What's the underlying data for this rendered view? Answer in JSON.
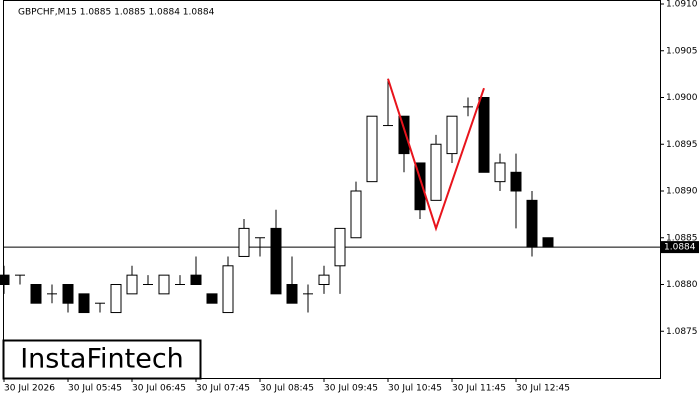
{
  "chart_data": {
    "type": "candlestick",
    "header": "GBPCHF,M15  1.0885 1.0885 1.0884 1.0884",
    "logo": "InstaFintech",
    "categories": [
      "30 Jul 2026",
      null,
      null,
      null,
      "30 Jul 05:45",
      null,
      null,
      null,
      "30 Jul 06:45",
      null,
      null,
      null,
      "30 Jul 07:45",
      null,
      null,
      null,
      "30 Jul 08:45",
      null,
      null,
      null,
      "30 Jul 09:45",
      null,
      null,
      null,
      "30 Jul 10:45",
      null,
      null,
      null,
      "30 Jul 11:45",
      null,
      null,
      null,
      "30 Jul 12:45",
      null,
      null
    ],
    "open": [
      1.0881,
      1.0881,
      1.088,
      1.0879,
      1.088,
      1.0879,
      1.0878,
      1.0877,
      1.0879,
      1.088,
      1.0879,
      1.088,
      1.0881,
      1.0879,
      1.0877,
      1.0883,
      1.0885,
      1.0886,
      1.088,
      1.0879,
      1.088,
      1.0882,
      1.0885,
      1.0891,
      1.0897,
      1.0898,
      1.0893,
      1.0889,
      1.0894,
      1.0899,
      1.09,
      1.0891,
      1.0892,
      1.0889,
      1.0885
    ],
    "high": [
      1.0882,
      1.0881,
      1.088,
      1.088,
      1.088,
      1.0879,
      1.0878,
      1.088,
      1.0882,
      1.0881,
      1.0881,
      1.0881,
      1.0883,
      1.0879,
      1.0883,
      1.0887,
      1.0885,
      1.0888,
      1.0883,
      1.088,
      1.0882,
      1.0886,
      1.0891,
      1.0898,
      1.0902,
      1.0898,
      1.0893,
      1.0896,
      1.0898,
      1.09,
      1.09,
      1.0894,
      1.0894,
      1.089,
      1.0885
    ],
    "low": [
      1.0879,
      1.088,
      1.0878,
      1.0878,
      1.0877,
      1.0877,
      1.0877,
      1.0877,
      1.0879,
      1.088,
      1.0879,
      1.088,
      1.088,
      1.0878,
      1.0877,
      1.0883,
      1.0883,
      1.0879,
      1.0878,
      1.0877,
      1.0879,
      1.0879,
      1.0885,
      1.0891,
      1.0897,
      1.0892,
      1.0887,
      1.0889,
      1.0893,
      1.0898,
      1.0892,
      1.089,
      1.0886,
      1.0883,
      1.0884
    ],
    "close": [
      1.088,
      1.0881,
      1.0878,
      1.0879,
      1.0878,
      1.0877,
      1.0878,
      1.088,
      1.0881,
      1.088,
      1.0881,
      1.088,
      1.088,
      1.0878,
      1.0882,
      1.0886,
      1.0885,
      1.0879,
      1.0878,
      1.0879,
      1.0881,
      1.0886,
      1.089,
      1.0898,
      1.0897,
      1.0894,
      1.0888,
      1.0895,
      1.0898,
      1.0899,
      1.0892,
      1.0893,
      1.089,
      1.0884,
      1.0884
    ],
    "up_color": "#ffffff",
    "down_color": "#000000",
    "ylim": [
      1.087,
      1.091
    ],
    "yticks": [
      {
        "value": 1.0875,
        "label": "1.0875"
      },
      {
        "value": 1.088,
        "label": "1.0880"
      },
      {
        "value": 1.0885,
        "label": "1.0885"
      },
      {
        "value": 1.089,
        "label": "1.0890"
      },
      {
        "value": 1.0895,
        "label": "1.0895"
      },
      {
        "value": 1.09,
        "label": "1.0900"
      },
      {
        "value": 1.0905,
        "label": "1.0905"
      },
      {
        "value": 1.091,
        "label": "1.0910"
      }
    ],
    "current_price": 1.0884,
    "pattern": {
      "color": "#e8141c",
      "x": [
        24,
        27,
        30
      ],
      "y": [
        1.0902,
        1.0886,
        1.0901
      ]
    }
  }
}
